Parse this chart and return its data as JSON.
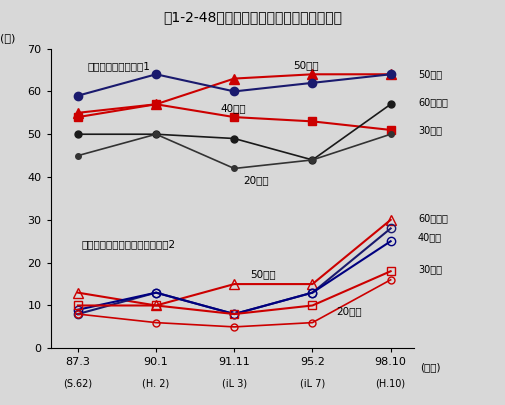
{
  "title": "第1-2-48図　科学技術に関する関心の推移",
  "xlabel_top": [
    "87.3",
    "90.1",
    "91.11",
    "95.2",
    "98.10"
  ],
  "xlabel_bottom": [
    "(S.62)",
    "(H. 2)",
    "(iL 3)",
    "(iL 7)",
    "(H.10)"
  ],
  "ylabel": "(％)",
  "ylim": [
    0,
    70
  ],
  "yticks": [
    0,
    10,
    20,
    30,
    40,
    50,
    60,
    70
  ],
  "bg_color": "#d8d8d8",
  "upper_series": [
    {
      "values": [
        55,
        57,
        63,
        64,
        64
      ],
      "color": "#cc0000",
      "marker": "^",
      "filled": true,
      "ms": 7,
      "lw": 1.5,
      "label": "50歳代"
    },
    {
      "values": [
        59,
        64,
        60,
        62,
        64
      ],
      "color": "#1a1a6e",
      "marker": "o",
      "filled": true,
      "ms": 6,
      "lw": 1.5,
      "label": "60歳以上"
    },
    {
      "values": [
        54,
        57,
        54,
        53,
        51
      ],
      "color": "#cc0000",
      "marker": "s",
      "filled": true,
      "ms": 6,
      "lw": 1.5,
      "label": "30歳代"
    },
    {
      "values": [
        50,
        50,
        49,
        44,
        57
      ],
      "color": "#1a1a1a",
      "marker": "o",
      "filled": true,
      "ms": 5,
      "lw": 1.2,
      "label": "40歳代"
    },
    {
      "values": [
        45,
        50,
        42,
        44,
        50
      ],
      "color": "#333333",
      "marker": "o",
      "filled": true,
      "ms": 4,
      "lw": 1.2,
      "label": "20歳代"
    }
  ],
  "lower_series": [
    {
      "values": [
        13,
        10,
        15,
        15,
        30
      ],
      "color": "#cc0000",
      "marker": "^",
      "filled": false,
      "ms": 7,
      "lw": 1.5,
      "label": "60歳以上"
    },
    {
      "values": [
        8,
        13,
        8,
        13,
        28
      ],
      "color": "#1a1a6e",
      "marker": "o",
      "filled": false,
      "ms": 6,
      "lw": 1.5,
      "label": "40歳代"
    },
    {
      "values": [
        9,
        13,
        8,
        13,
        25
      ],
      "color": "#000080",
      "marker": "o",
      "filled": false,
      "ms": 6,
      "lw": 1.5,
      "label": "50歳代"
    },
    {
      "values": [
        10,
        10,
        8,
        10,
        18
      ],
      "color": "#cc0000",
      "marker": "s",
      "filled": false,
      "ms": 6,
      "lw": 1.5,
      "label": "30歳代"
    },
    {
      "values": [
        8,
        6,
        5,
        6,
        16
      ],
      "color": "#cc0000",
      "marker": "o",
      "filled": false,
      "ms": 5,
      "lw": 1.2,
      "label": "20歳代"
    }
  ],
  "ann_group1": "「関心がある」注）1",
  "ann_group2": "「（非常に）関心がある」注）2",
  "ann_20s_upper": "20歳代",
  "ann_40s_upper": "40歳代",
  "ann_50s_upper": "50歳代",
  "ann_50s_lower": "50歳代",
  "ann_20s_lower": "20歳代",
  "right_upper": [
    {
      "y": 64.0,
      "label": "50歳代"
    },
    {
      "y": 57.5,
      "label": "60歳以上"
    },
    {
      "y": 51.0,
      "label": "30歳代"
    }
  ],
  "right_lower": [
    {
      "y": 30.5,
      "label": "60歳以上"
    },
    {
      "y": 26.0,
      "label": "40歳代"
    },
    {
      "y": 18.5,
      "label": "30歳代"
    }
  ]
}
